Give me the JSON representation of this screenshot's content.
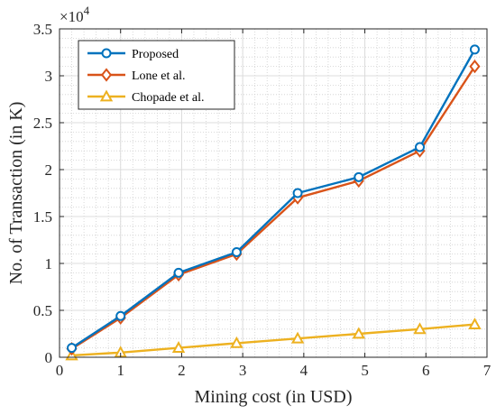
{
  "chart_data": {
    "type": "line",
    "xlabel": "Mining cost (in USD)",
    "ylabel": "No. of Transaction (in K)",
    "xlim": [
      0,
      7
    ],
    "ylim": [
      0,
      35000
    ],
    "x_ticks": [
      0,
      1,
      2,
      3,
      4,
      5,
      6,
      7
    ],
    "y_ticks": [
      0,
      5000,
      10000,
      15000,
      20000,
      25000,
      30000,
      35000
    ],
    "y_tick_labels": [
      "0",
      "0.5",
      "1",
      "1.5",
      "2",
      "2.5",
      "3",
      "3.5"
    ],
    "y_exponent": {
      "base": "×10",
      "power": "4"
    },
    "grid": true,
    "minor_grid": true,
    "legend_position": "top-left",
    "series": [
      {
        "name": "Proposed",
        "color": "#0072BD",
        "marker": "circle",
        "x": [
          0.2,
          1.0,
          1.95,
          2.9,
          3.9,
          4.9,
          5.9,
          6.8
        ],
        "y": [
          1000,
          4400,
          9000,
          11200,
          17500,
          19200,
          22400,
          32800
        ]
      },
      {
        "name": "Lone et al.",
        "color": "#D95319",
        "marker": "diamond",
        "x": [
          0.2,
          1.0,
          1.95,
          2.9,
          3.9,
          4.9,
          5.9,
          6.8
        ],
        "y": [
          900,
          4200,
          8800,
          11000,
          17000,
          18800,
          22000,
          31000
        ]
      },
      {
        "name": "Chopade et al.",
        "color": "#EDB120",
        "marker": "triangle",
        "x": [
          0.2,
          1.0,
          1.95,
          2.9,
          3.9,
          4.9,
          5.9,
          6.8
        ],
        "y": [
          200,
          500,
          1000,
          1500,
          2000,
          2500,
          3000,
          3500
        ]
      }
    ]
  }
}
